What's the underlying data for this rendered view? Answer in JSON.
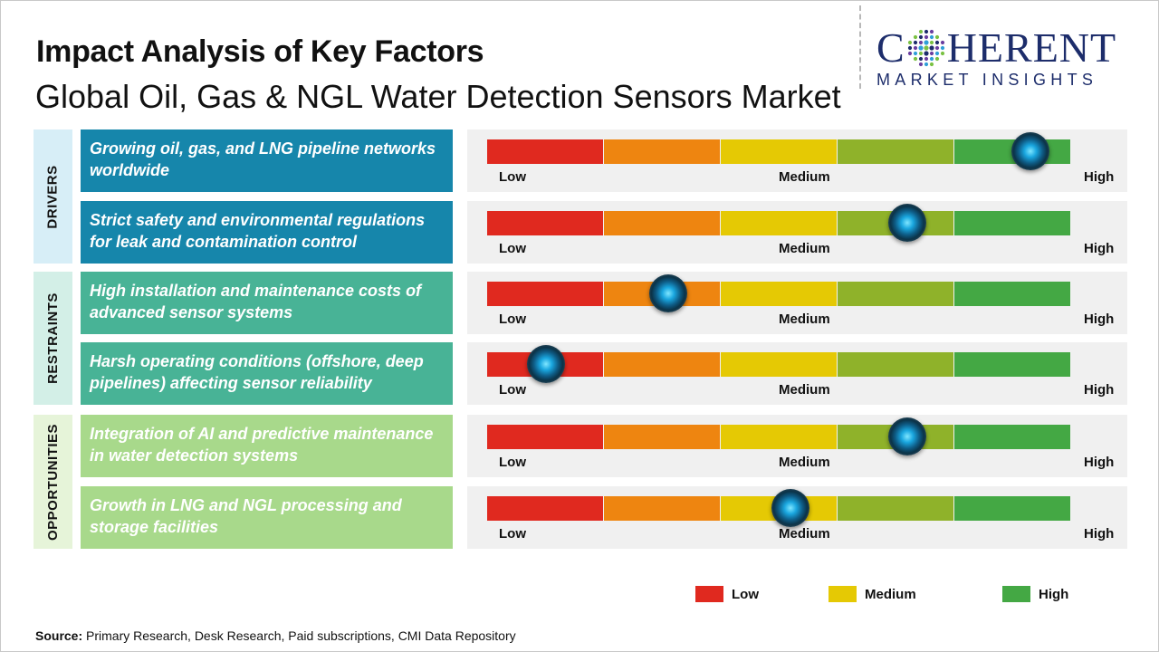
{
  "title": "Impact Analysis of Key Factors",
  "subtitle": "Global Oil, Gas & NGL Water Detection Sensors Market",
  "logo": {
    "main_left": "C",
    "main_right": "HERENT",
    "sub": "MARKET INSIGHTS"
  },
  "colors": {
    "low": "#e0291f",
    "medium_low": "#ee8510",
    "medium": "#e5c904",
    "medium_high": "#8fb22a",
    "high": "#44a844",
    "drivers": "#1686ab",
    "restraints": "#48b396",
    "opportunities": "#a8d98b",
    "drivers_label_bg": "#d7eef7",
    "restraints_label_bg": "#d3efe7",
    "opportunities_label_bg": "#e6f4d9"
  },
  "scale_labels": {
    "low": "Low",
    "medium": "Medium",
    "high": "High"
  },
  "legend": [
    {
      "label": "Low",
      "color": "#e0291f"
    },
    {
      "label": "Medium",
      "color": "#e5c904"
    },
    {
      "label": "High",
      "color": "#44a844"
    }
  ],
  "source": {
    "label": "Source:",
    "text": " Primary Research, Desk Research, Paid subscriptions, CMI Data Repository"
  },
  "chart_data": {
    "type": "gauge",
    "scale": [
      "Low",
      "Medium",
      "High"
    ],
    "categories": [
      {
        "name": "DRIVERS",
        "color_key": "drivers",
        "factors": [
          {
            "text": "Growing oil, gas, and LNG pipeline networks worldwide",
            "impact": 0.93
          },
          {
            "text": "Strict safety and environmental regulations for leak and contamination control",
            "impact": 0.72
          }
        ]
      },
      {
        "name": "RESTRAINTS",
        "color_key": "restraints",
        "factors": [
          {
            "text": "High installation and maintenance costs of advanced sensor systems",
            "impact": 0.31
          },
          {
            "text": "Harsh operating conditions (offshore, deep pipelines) affecting sensor reliability",
            "impact": 0.1
          }
        ]
      },
      {
        "name": "OPPORTUNITIES",
        "color_key": "opportunities",
        "factors": [
          {
            "text": "Integration of AI and predictive maintenance in water detection systems",
            "impact": 0.72
          },
          {
            "text": "Growth in LNG and NGL processing and storage facilities",
            "impact": 0.52
          }
        ]
      }
    ]
  }
}
